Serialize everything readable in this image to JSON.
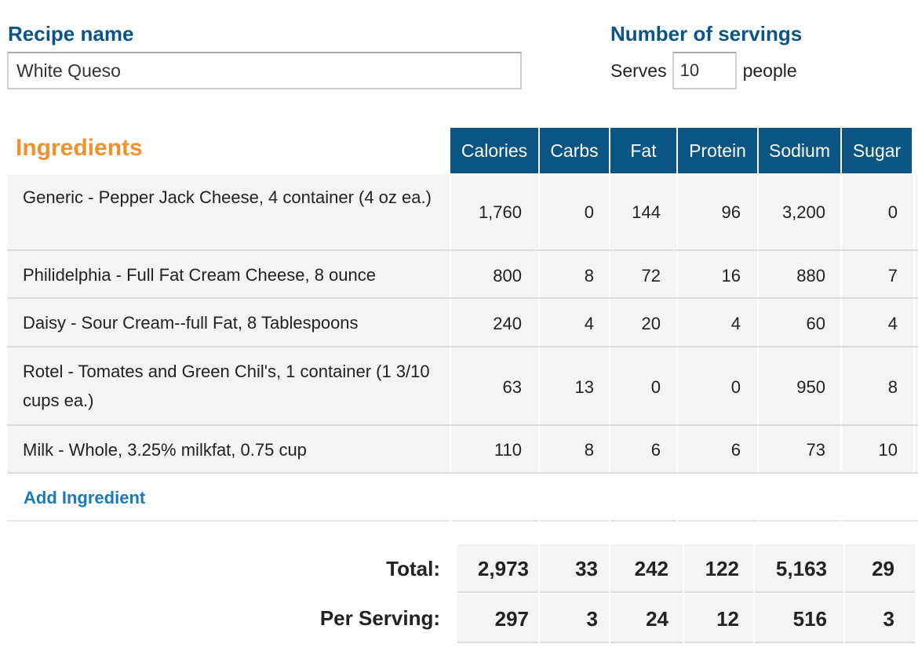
{
  "recipe": {
    "label": "Recipe name",
    "name_value": "White Queso"
  },
  "servings": {
    "label": "Number of servings",
    "prefix": "Serves",
    "value": "10",
    "suffix": "people"
  },
  "ingredients": {
    "title": "Ingredients",
    "columns": [
      "Calories",
      "Carbs",
      "Fat",
      "Protein",
      "Sodium",
      "Sugar"
    ],
    "rows": [
      {
        "name": "Generic - Pepper Jack Cheese, 4 container (4 oz ea.)",
        "values": [
          "1,760",
          "0",
          "144",
          "96",
          "3,200",
          "0"
        ]
      },
      {
        "name": "Philidelphia - Full Fat Cream Cheese, 8 ounce",
        "values": [
          "800",
          "8",
          "72",
          "16",
          "880",
          "7"
        ]
      },
      {
        "name": "Daisy - Sour Cream--full Fat, 8 Tablespoons",
        "values": [
          "240",
          "4",
          "20",
          "4",
          "60",
          "4"
        ]
      },
      {
        "name": "Rotel - Tomates and Green Chil's, 1 container (1 3/10 cups ea.)",
        "values": [
          "63",
          "13",
          "0",
          "0",
          "950",
          "8"
        ]
      },
      {
        "name": "Milk - Whole, 3.25% milkfat, 0.75 cup",
        "values": [
          "110",
          "8",
          "6",
          "6",
          "73",
          "10"
        ]
      }
    ],
    "add_label": "Add Ingredient"
  },
  "totals": {
    "total_label": "Total:",
    "total_values": [
      "2,973",
      "33",
      "242",
      "122",
      "5,163",
      "29"
    ],
    "per_serving_label": "Per Serving:",
    "per_serving_values": [
      "297",
      "3",
      "24",
      "12",
      "516",
      "3"
    ]
  },
  "colors": {
    "header_bg": "#0b5584",
    "label_blue": "#0b5584",
    "ingredients_orange": "#f0922b",
    "link_blue": "#1a7ab8",
    "row_bg": "#f4f4f4"
  }
}
